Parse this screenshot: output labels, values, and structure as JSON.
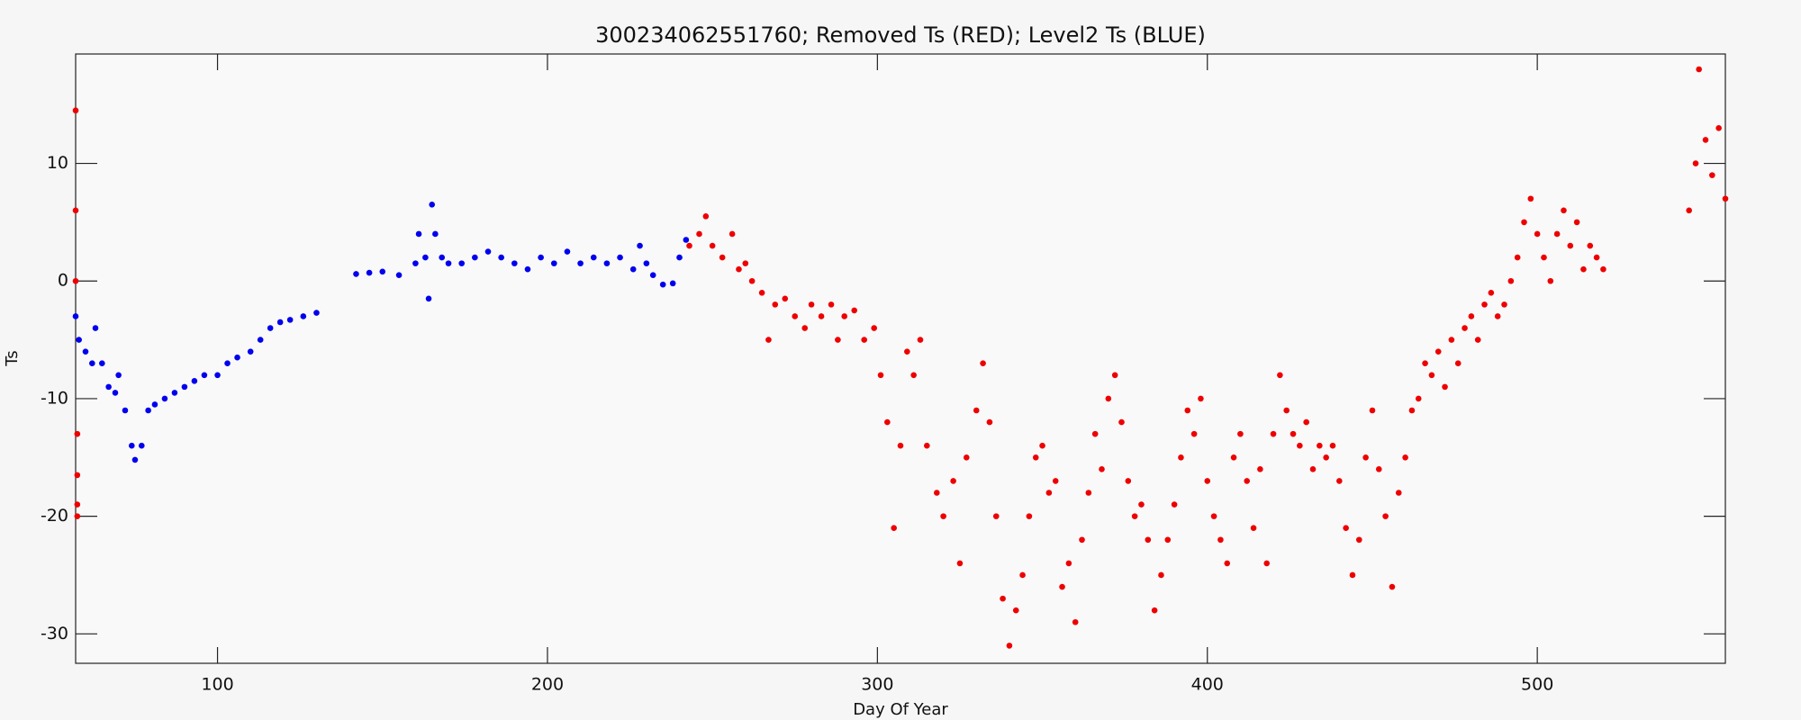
{
  "chart_data": {
    "type": "scatter",
    "title": "300234062551760; Removed Ts (RED); Level2 Ts (BLUE)",
    "x_label": "Day Of Year",
    "y_label": "Ts",
    "xlim": [
      57,
      557
    ],
    "ylim": [
      -32.5,
      19.3
    ],
    "xticks": [
      100,
      200,
      300,
      400,
      500
    ],
    "yticks": [
      -30,
      -20,
      -10,
      0,
      10
    ],
    "series": [
      {
        "color": "#0000ee",
        "x": [
          57,
          58,
          60,
          62,
          63,
          65,
          67,
          69,
          70,
          72,
          74,
          75,
          77,
          79,
          81,
          84,
          87,
          90,
          93,
          96,
          100,
          103,
          106,
          110,
          113,
          116,
          119,
          122,
          126,
          130,
          142,
          146,
          150,
          155,
          160,
          161,
          163,
          164,
          165,
          166,
          168,
          170,
          174,
          178,
          182,
          186,
          190,
          194,
          198,
          202,
          206,
          210,
          214,
          218,
          222,
          226,
          228,
          230,
          232,
          235,
          238,
          240,
          242
        ],
        "values": [
          -3,
          -5,
          -6,
          -7,
          -4,
          -7,
          -9,
          -9.5,
          -8,
          -11,
          -14,
          -15.2,
          -14,
          -11,
          -10.5,
          -10,
          -9.5,
          -9,
          -8.5,
          -8,
          -8,
          -7,
          -6.5,
          -6,
          -5,
          -4,
          -3.5,
          -3.3,
          -3,
          -2.7,
          0.6,
          0.7,
          0.8,
          0.5,
          1.5,
          4,
          2,
          -1.5,
          6.5,
          4,
          2,
          1.5,
          1.5,
          2,
          2.5,
          2,
          1.5,
          1,
          2,
          1.5,
          2.5,
          1.5,
          2,
          1.5,
          2,
          1,
          3,
          1.5,
          0.5,
          -0.3,
          -0.2,
          2,
          3.5
        ]
      },
      {
        "color": "#ee0000",
        "x": [
          57,
          57,
          57,
          57.5,
          57.5,
          57.5,
          57.5,
          243,
          246,
          248,
          250,
          253,
          256,
          258,
          260,
          262,
          265,
          267,
          269,
          272,
          275,
          278,
          280,
          283,
          286,
          288,
          290,
          293,
          296,
          299,
          301,
          303,
          305,
          307,
          309,
          311,
          313,
          315,
          318,
          320,
          323,
          325,
          327,
          330,
          332,
          334,
          336,
          338,
          340,
          342,
          344,
          346,
          348,
          350,
          352,
          354,
          356,
          358,
          360,
          362,
          364,
          366,
          368,
          370,
          372,
          374,
          376,
          378,
          380,
          382,
          384,
          386,
          388,
          390,
          392,
          394,
          396,
          398,
          400,
          402,
          404,
          406,
          408,
          410,
          412,
          414,
          416,
          418,
          420,
          422,
          424,
          426,
          428,
          430,
          432,
          434,
          436,
          438,
          440,
          442,
          444,
          446,
          448,
          450,
          452,
          454,
          456,
          458,
          460,
          462,
          464,
          466,
          468,
          470,
          472,
          474,
          476,
          478,
          480,
          482,
          484,
          486,
          488,
          490,
          492,
          494,
          496,
          498,
          500,
          502,
          504,
          506,
          508,
          510,
          512,
          514,
          516,
          518,
          520,
          546,
          548,
          549,
          551,
          553,
          555,
          557
        ],
        "values": [
          14.5,
          6,
          0,
          -13,
          -16.5,
          -19,
          -20,
          3,
          4,
          5.5,
          3,
          2,
          4,
          1,
          1.5,
          0,
          -1,
          -5,
          -2,
          -1.5,
          -3,
          -4,
          -2,
          -3,
          -2,
          -5,
          -3,
          -2.5,
          -5,
          -4,
          -8,
          -12,
          -21,
          -14,
          -6,
          -8,
          -5,
          -14,
          -18,
          -20,
          -17,
          -24,
          -15,
          -11,
          -7,
          -12,
          -20,
          -27,
          -31,
          -28,
          -25,
          -20,
          -15,
          -14,
          -18,
          -17,
          -26,
          -24,
          -29,
          -22,
          -18,
          -13,
          -16,
          -10,
          -8,
          -12,
          -17,
          -20,
          -19,
          -22,
          -28,
          -25,
          -22,
          -19,
          -15,
          -11,
          -13,
          -10,
          -17,
          -20,
          -22,
          -24,
          -15,
          -13,
          -17,
          -21,
          -16,
          -24,
          -13,
          -8,
          -11,
          -13,
          -14,
          -12,
          -16,
          -14,
          -15,
          -14,
          -17,
          -21,
          -25,
          -22,
          -15,
          -11,
          -16,
          -20,
          -26,
          -18,
          -15,
          -11,
          -10,
          -7,
          -8,
          -6,
          -9,
          -5,
          -7,
          -4,
          -3,
          -5,
          -2,
          -1,
          -3,
          -2,
          0,
          2,
          5,
          7,
          4,
          2,
          0,
          4,
          6,
          3,
          5,
          1,
          3,
          2,
          1,
          6,
          10,
          18,
          12,
          9,
          13,
          7
        ]
      }
    ]
  }
}
